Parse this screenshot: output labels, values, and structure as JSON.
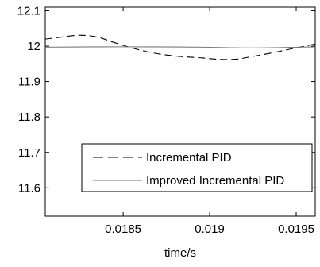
{
  "chart_data": {
    "type": "line",
    "xlabel": "time/s",
    "ylabel": "",
    "title": "",
    "xlim": [
      0.01805,
      0.01961
    ],
    "ylim": [
      11.52,
      12.11
    ],
    "x_ticks": [
      {
        "value": 0.0185,
        "label": "0.0185"
      },
      {
        "value": 0.019,
        "label": "0.019"
      },
      {
        "value": 0.0195,
        "label": "0.0195"
      }
    ],
    "y_ticks": [
      {
        "value": 11.6,
        "label": "11.6"
      },
      {
        "value": 11.7,
        "label": "11.7"
      },
      {
        "value": 11.8,
        "label": "11.8"
      },
      {
        "value": 11.9,
        "label": "11.9"
      },
      {
        "value": 12.0,
        "label": "12"
      },
      {
        "value": 12.1,
        "label": "12.1"
      }
    ],
    "legend_position": "lower-right",
    "series": [
      {
        "name": "Incremental PID",
        "style": "dashed",
        "color": "#000000",
        "x": [
          0.01805,
          0.01815,
          0.01825,
          0.01835,
          0.01845,
          0.01855,
          0.01865,
          0.01875,
          0.01885,
          0.01895,
          0.01905,
          0.01915,
          0.01925,
          0.01935,
          0.01945,
          0.01955,
          0.01961
        ],
        "y": [
          12.02,
          12.026,
          12.031,
          12.026,
          12.01,
          11.995,
          11.983,
          11.975,
          11.97,
          11.967,
          11.963,
          11.963,
          11.971,
          11.98,
          11.99,
          12.0,
          12.006
        ]
      },
      {
        "name": "Improved Incremental PID",
        "style": "solid",
        "color": "#7a7a7a",
        "x": [
          0.01805,
          0.01835,
          0.01865,
          0.01895,
          0.01925,
          0.01961
        ],
        "y": [
          11.997,
          11.998,
          11.998,
          11.997,
          11.995,
          11.998
        ]
      }
    ]
  }
}
